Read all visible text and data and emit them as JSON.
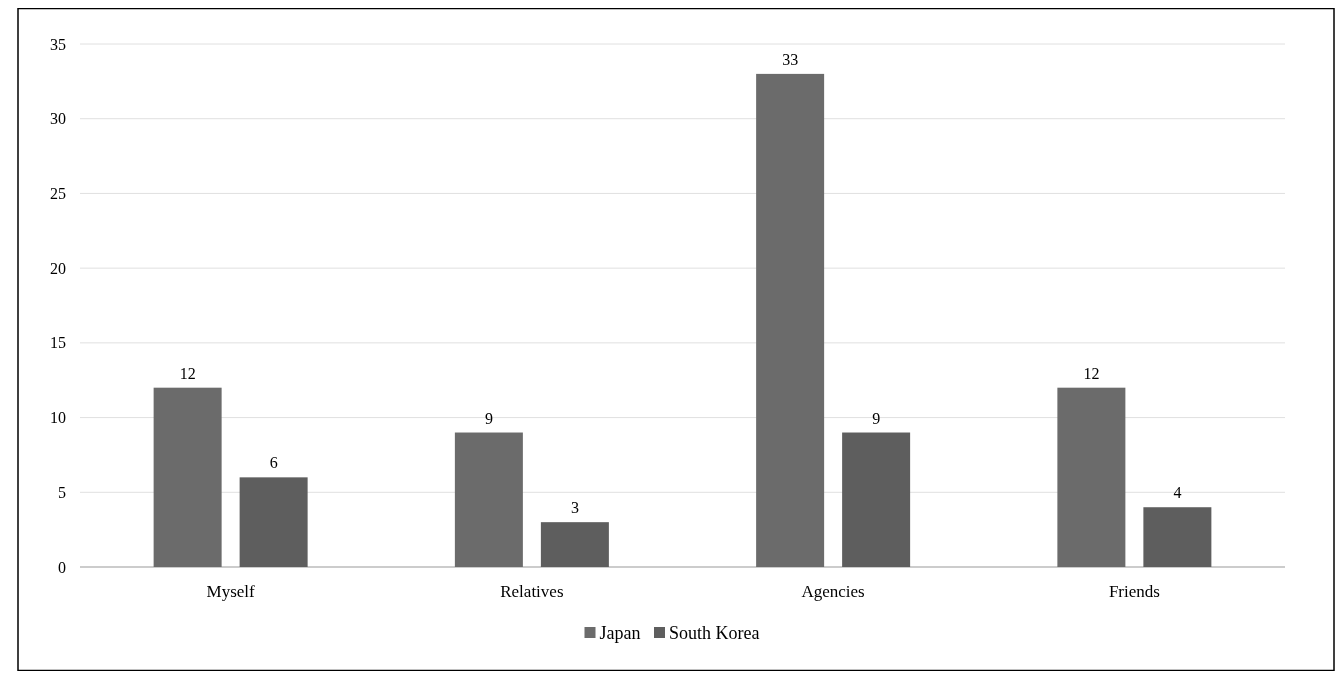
{
  "chart_data": {
    "type": "bar",
    "categories": [
      "Myself",
      "Relatives",
      "Agencies",
      "Friends"
    ],
    "series": [
      {
        "name": "Japan",
        "color": "#6b6b6b",
        "values": [
          12,
          9,
          33,
          12
        ]
      },
      {
        "name": "South Korea",
        "color": "#5e5e5e",
        "values": [
          6,
          3,
          9,
          4
        ]
      }
    ],
    "ylim": [
      0,
      35
    ],
    "yticks": [
      0,
      5,
      10,
      15,
      20,
      25,
      30,
      35
    ],
    "grid": "y",
    "legend": "bottom",
    "data_labels": true
  }
}
